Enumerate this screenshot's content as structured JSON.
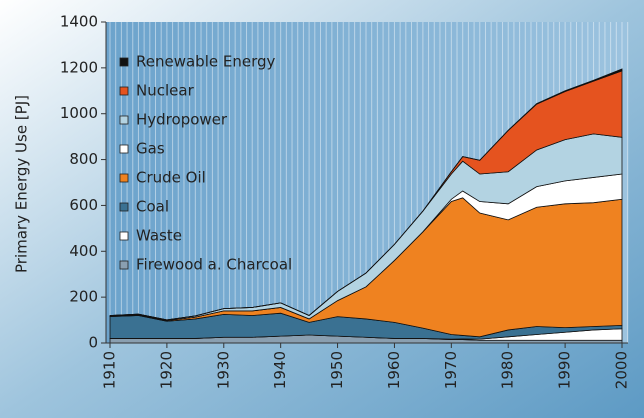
{
  "chart_data": {
    "type": "stacked_area",
    "y_axis_label": "Primary Energy Use  [PJ]",
    "x": [
      1910,
      1915,
      1920,
      1925,
      1930,
      1935,
      1940,
      1945,
      1950,
      1955,
      1960,
      1965,
      1970,
      1972,
      1975,
      1980,
      1985,
      1990,
      1995,
      2000
    ],
    "xlim": [
      1910,
      2000
    ],
    "xticks": [
      1910,
      1920,
      1930,
      1940,
      1950,
      1960,
      1970,
      1980,
      1990,
      2000
    ],
    "ylim": [
      0,
      1400
    ],
    "yticks": [
      0,
      200,
      400,
      600,
      800,
      1000,
      1200,
      1400
    ],
    "grid": true,
    "legend": "top-left",
    "series": [
      {
        "name": "Firewood a. Charcoal",
        "color": "#8a9fb0",
        "values": [
          20,
          20,
          20,
          20,
          25,
          25,
          30,
          35,
          30,
          25,
          20,
          20,
          15,
          15,
          12,
          12,
          12,
          12,
          12,
          12
        ]
      },
      {
        "name": "Waste",
        "color": "#ffffff",
        "values": [
          0,
          0,
          0,
          0,
          0,
          0,
          0,
          0,
          0,
          0,
          0,
          0,
          2,
          3,
          5,
          15,
          25,
          35,
          45,
          50
        ]
      },
      {
        "name": "Coal",
        "color": "#3a7192",
        "values": [
          95,
          100,
          75,
          85,
          100,
          95,
          100,
          55,
          85,
          80,
          70,
          45,
          20,
          15,
          10,
          30,
          35,
          20,
          15,
          15
        ]
      },
      {
        "name": "Crude Oil",
        "color": "#ef8220",
        "values": [
          2,
          3,
          3,
          8,
          15,
          20,
          25,
          15,
          70,
          140,
          270,
          420,
          580,
          600,
          540,
          480,
          520,
          540,
          540,
          550
        ]
      },
      {
        "name": "Gas",
        "color": "#ffffff",
        "values": [
          0,
          0,
          0,
          0,
          0,
          0,
          0,
          0,
          0,
          0,
          0,
          0,
          10,
          30,
          50,
          70,
          90,
          100,
          110,
          110
        ]
      },
      {
        "name": "Hydropower",
        "color": "#b3d3e2",
        "values": [
          3,
          3,
          3,
          5,
          10,
          15,
          20,
          15,
          40,
          60,
          70,
          90,
          110,
          130,
          120,
          140,
          160,
          180,
          190,
          160
        ]
      },
      {
        "name": "Nuclear",
        "color": "#e5531f",
        "values": [
          0,
          0,
          0,
          0,
          0,
          0,
          0,
          0,
          0,
          0,
          0,
          0,
          10,
          20,
          60,
          180,
          200,
          210,
          230,
          290
        ]
      },
      {
        "name": "Renewable Energy",
        "color": "#111111",
        "values": [
          0,
          0,
          0,
          0,
          0,
          0,
          0,
          0,
          0,
          0,
          0,
          0,
          0,
          0,
          0,
          1,
          2,
          3,
          4,
          8
        ]
      }
    ]
  }
}
